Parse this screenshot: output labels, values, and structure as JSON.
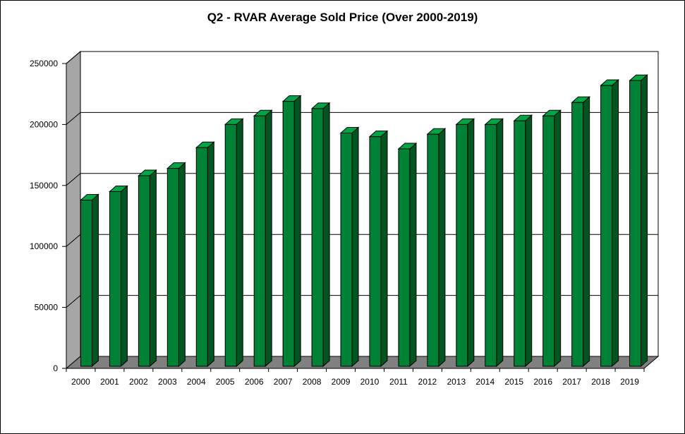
{
  "chart_data": {
    "type": "bar",
    "title": "Q2 - RVAR Average Sold Price (Over 2000-2019)",
    "xlabel": "",
    "ylabel": "",
    "categories": [
      "2000",
      "2001",
      "2002",
      "2003",
      "2004",
      "2005",
      "2006",
      "2007",
      "2008",
      "2009",
      "2010",
      "2011",
      "2012",
      "2013",
      "2014",
      "2015",
      "2016",
      "2017",
      "2018",
      "2019"
    ],
    "values": [
      138000,
      145000,
      158000,
      164000,
      181000,
      200000,
      207000,
      219000,
      213000,
      193000,
      190000,
      180000,
      192000,
      200000,
      200000,
      203000,
      207000,
      218000,
      232000,
      236000
    ],
    "ylim": [
      0,
      250000
    ],
    "yticks": [
      0,
      50000,
      100000,
      150000,
      200000,
      250000
    ],
    "grid": true,
    "legend": "none",
    "colors": {
      "bar_front": "#008236",
      "bar_top": "#00a645",
      "bar_side": "#005520",
      "wall": "#a6a6a6",
      "floor": "#808080"
    }
  }
}
